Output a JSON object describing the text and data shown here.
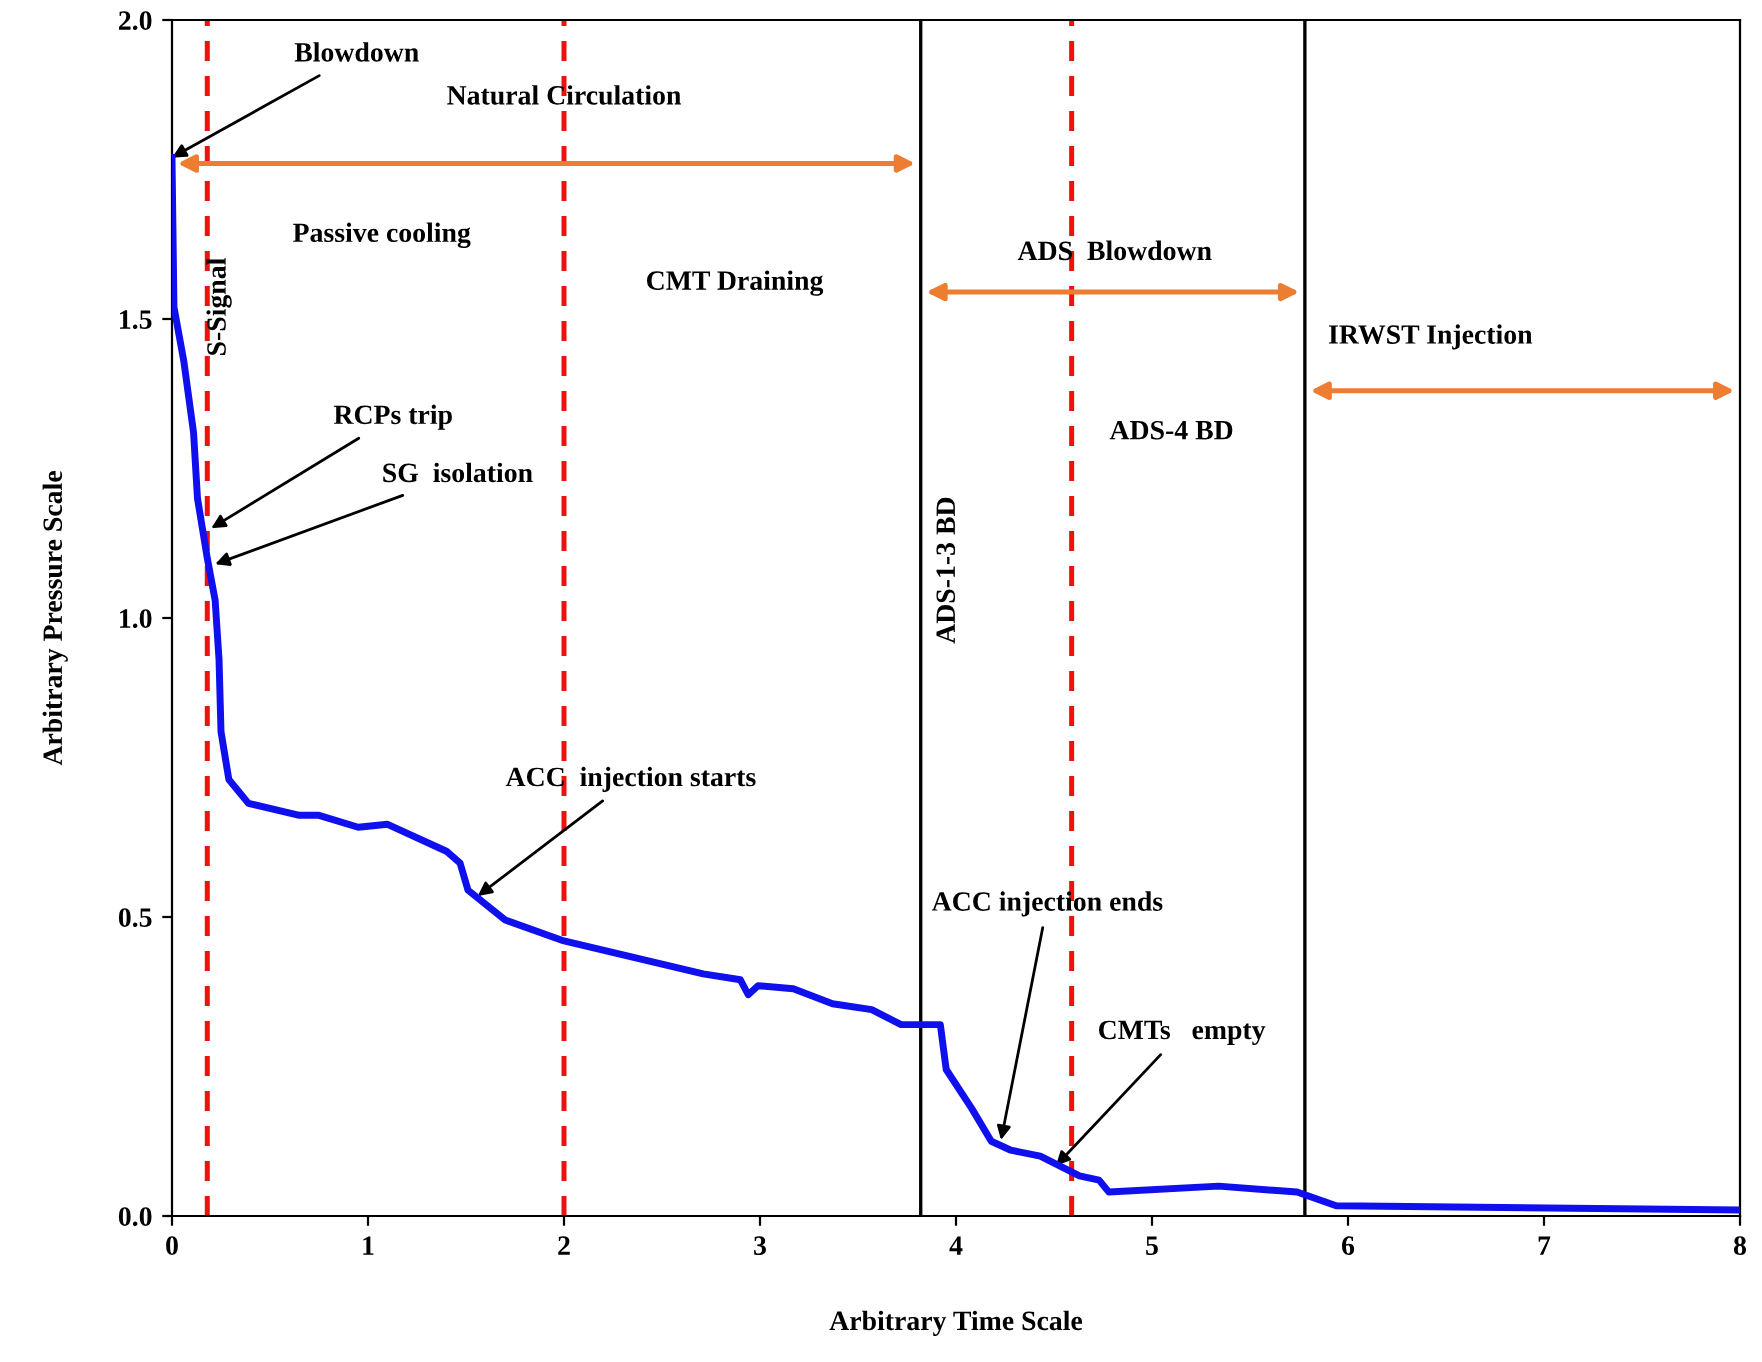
{
  "chart_data": {
    "type": "line",
    "xlabel": "Arbitrary Time Scale",
    "ylabel": "Arbitrary Pressure Scale",
    "xlim": [
      0,
      8
    ],
    "ylim": [
      0,
      2.0
    ],
    "xticks": [
      0,
      1,
      2,
      3,
      4,
      5,
      6,
      7,
      8
    ],
    "yticks": [
      {
        "value": 0,
        "label": "0.0"
      },
      {
        "value": 0.5,
        "label": "0.5"
      },
      {
        "value": 1.0,
        "label": "1.0"
      },
      {
        "value": 1.5,
        "label": "1.5"
      },
      {
        "value": 2.0,
        "label": "2.0"
      }
    ],
    "grid": false,
    "marker": "none",
    "line_style": "solid",
    "series": [
      {
        "color": "#1010ee",
        "x": [
          0,
          0.01,
          0.06,
          0.11,
          0.13,
          0.18,
          0.22,
          0.24,
          0.25,
          0.29,
          0.39,
          0.65,
          0.75,
          0.95,
          1.1,
          1.4,
          1.47,
          1.51,
          1.7,
          2.0,
          2.71,
          2.9,
          2.94,
          2.99,
          3.17,
          3.37,
          3.57,
          3.72,
          3.92,
          3.95,
          4.08,
          4.18,
          4.28,
          4.43,
          4.63,
          4.73,
          4.78,
          5.34,
          5.74,
          5.94,
          8
        ],
        "values": [
          1.77,
          1.52,
          1.43,
          1.31,
          1.2,
          1.1,
          1.03,
          0.93,
          0.81,
          0.73,
          0.69,
          0.67,
          0.67,
          0.65,
          0.655,
          0.61,
          0.59,
          0.545,
          0.495,
          0.46,
          0.405,
          0.395,
          0.37,
          0.385,
          0.38,
          0.355,
          0.345,
          0.32,
          0.32,
          0.245,
          0.18,
          0.125,
          0.11,
          0.1,
          0.067,
          0.06,
          0.04,
          0.05,
          0.04,
          0.017,
          0.01
        ]
      }
    ],
    "ref_lines": [
      {
        "axis": "x",
        "value": 0.18,
        "color": "#ee1111",
        "line_style": "dashed",
        "label": "S-Signal"
      },
      {
        "axis": "x",
        "value": 2.0,
        "color": "#ee1111",
        "line_style": "dashed"
      },
      {
        "axis": "x",
        "value": 4.59,
        "color": "#ee1111",
        "line_style": "dashed"
      },
      {
        "axis": "x",
        "value": 3.82,
        "color": "#000000",
        "line_style": "solid",
        "label": "ADS-1-3 BD"
      },
      {
        "axis": "x",
        "value": 5.78,
        "color": "#000000",
        "line_style": "solid"
      }
    ],
    "annotations": [
      {
        "text": "Blowdown",
        "x": 0,
        "y": 1.77
      },
      {
        "text": "RCPs trip",
        "x": 0.2,
        "y": 1.15
      },
      {
        "text": "SG  isolation",
        "x": 0.22,
        "y": 1.09
      },
      {
        "text": "ACC  injection starts",
        "x": 1.56,
        "y": 0.535
      },
      {
        "text": "ACC injection ends",
        "x": 4.23,
        "y": 0.127
      },
      {
        "text": "CMTs   empty",
        "x": 4.51,
        "y": 0.084
      },
      "Natural Circulation",
      "ADS  Blowdown",
      "IRWST Injection",
      "Passive cooling",
      "CMT Draining",
      "ADS-4 BD"
    ]
  }
}
